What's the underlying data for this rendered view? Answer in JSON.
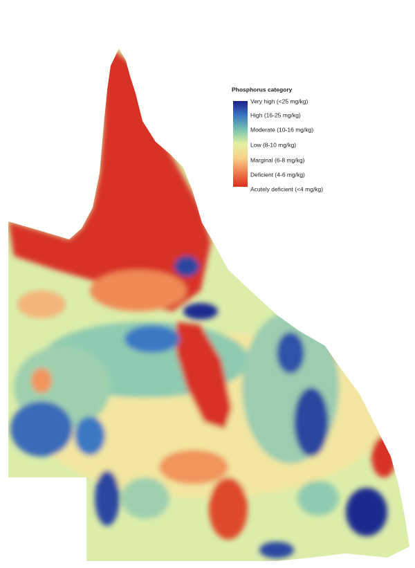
{
  "legend": {
    "title": "Phosphorus category",
    "items": [
      "Very high (<25 mg/kg)",
      "High (16-25 mg/kg)",
      "Moderate (10-16 mg/kg)",
      "Low (8-10 mg/kg)",
      "Marginal (6-8 mg/kg)",
      "Deficient (4-6 mg/kg)",
      "Acutely deficient (<4 mg/kg)"
    ]
  }
}
